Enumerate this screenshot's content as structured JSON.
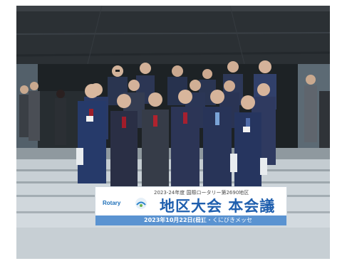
{
  "photo": {
    "subject": "",
    "banner": {
      "subtitle": "2023-24年度 国際ロータリー第2690地区",
      "logo_text": "Rotary",
      "title": "地区大会 本会議",
      "date": "2023年10月22日(日)",
      "venue": "松江・くにびきメッセ"
    }
  }
}
